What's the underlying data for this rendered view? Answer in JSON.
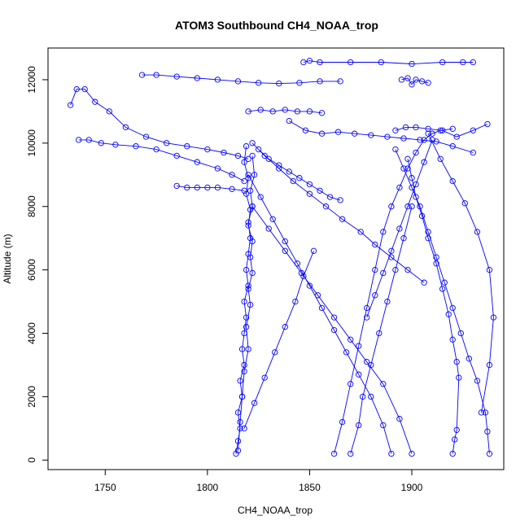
{
  "chart_data": {
    "type": "line",
    "title": "ATOM3 Southbound CH4_NOAA_trop",
    "xlabel": "CH4_NOAA_trop",
    "ylabel": "Altitude (m)",
    "xlim": [
      1722,
      1945
    ],
    "ylim": [
      -300,
      13000
    ],
    "x_ticks": [
      1750,
      1800,
      1850,
      1900
    ],
    "y_ticks": [
      0,
      2000,
      4000,
      6000,
      8000,
      10000,
      12000
    ],
    "x_tick_labels": [
      "1750",
      "1800",
      "1850",
      "1900"
    ],
    "y_tick_labels": [
      "0",
      "2000",
      "4000",
      "6000",
      "8000",
      "10000",
      "12000"
    ],
    "series_color": "#0000ff",
    "marker": "open-circle",
    "grid": false,
    "series": [
      {
        "x": [
          1814,
          1815,
          1816,
          1815,
          1817,
          1816,
          1818,
          1817,
          1818,
          1819,
          1818,
          1820,
          1819,
          1820,
          1821,
          1820,
          1822,
          1821,
          1823,
          1822
        ],
        "y": [
          200,
          600,
          1000,
          1500,
          2000,
          2500,
          3000,
          3500,
          4000,
          4500,
          5000,
          5500,
          6000,
          6500,
          7000,
          7500,
          8000,
          8500,
          9000,
          9600
        ]
      },
      {
        "x": [
          1819,
          1818,
          1820,
          1819,
          1821,
          1820,
          1822,
          1821,
          1822,
          1820,
          1821,
          1819,
          1820,
          1818,
          1817,
          1816,
          1815
        ],
        "y": [
          9900,
          9400,
          8900,
          8400,
          7900,
          7400,
          6900,
          6400,
          5900,
          5400,
          4900,
          4200,
          3500,
          2800,
          2000,
          1200,
          300
        ]
      },
      {
        "x": [
          1733,
          1736,
          1740,
          1745,
          1752,
          1760,
          1770,
          1780,
          1790,
          1800,
          1808,
          1815,
          1820
        ],
        "y": [
          11200,
          11700,
          11700,
          11300,
          11000,
          10500,
          10200,
          10000,
          9900,
          9800,
          9700,
          9600,
          9500
        ]
      },
      {
        "x": [
          1737,
          1742,
          1748,
          1755,
          1765,
          1775,
          1785,
          1795,
          1805,
          1812,
          1818
        ],
        "y": [
          10100,
          10100,
          10000,
          9950,
          9900,
          9800,
          9600,
          9400,
          9200,
          9000,
          8800
        ]
      },
      {
        "x": [
          1768,
          1775,
          1785,
          1795,
          1805,
          1815,
          1825,
          1835,
          1845,
          1855,
          1865
        ],
        "y": [
          12150,
          12150,
          12100,
          12050,
          12000,
          11950,
          11900,
          11880,
          11900,
          11950,
          11950
        ]
      },
      {
        "x": [
          1785,
          1790,
          1795,
          1800,
          1805,
          1812,
          1818
        ],
        "y": [
          8650,
          8600,
          8600,
          8600,
          8600,
          8550,
          8500
        ]
      },
      {
        "x": [
          1847,
          1850,
          1855,
          1870,
          1885,
          1900,
          1915,
          1925,
          1930
        ],
        "y": [
          12550,
          12600,
          12550,
          12550,
          12550,
          12500,
          12550,
          12550,
          12550
        ]
      },
      {
        "x": [
          1822,
          1828,
          1835,
          1842,
          1850,
          1858,
          1866,
          1875,
          1882,
          1890,
          1898,
          1906
        ],
        "y": [
          10000,
          9600,
          9200,
          8800,
          8400,
          8000,
          7600,
          7200,
          6800,
          6400,
          6000,
          5600
        ]
      },
      {
        "x": [
          1820,
          1826,
          1832,
          1838,
          1844,
          1850,
          1856,
          1862,
          1868,
          1874,
          1880,
          1886,
          1890
        ],
        "y": [
          9000,
          8300,
          7600,
          6900,
          6200,
          5500,
          4800,
          4100,
          3400,
          2700,
          2000,
          1100,
          200
        ]
      },
      {
        "x": [
          1822,
          1830,
          1838,
          1846,
          1854,
          1862,
          1870,
          1878,
          1886,
          1894,
          1900
        ],
        "y": [
          8000,
          7300,
          6600,
          5900,
          5200,
          4500,
          3800,
          3100,
          2400,
          1300,
          200
        ]
      },
      {
        "x": [
          1862,
          1866,
          1870,
          1874,
          1878,
          1882,
          1886,
          1890,
          1894,
          1898,
          1902,
          1906,
          1910,
          1914,
          1920
        ],
        "y": [
          200,
          1200,
          2400,
          3600,
          4800,
          6000,
          7200,
          8000,
          8600,
          9200,
          9700,
          10100,
          10300,
          10400,
          10450
        ]
      },
      {
        "x": [
          1870,
          1874,
          1876,
          1880,
          1884,
          1888,
          1892,
          1896,
          1900
        ],
        "y": [
          200,
          1100,
          2000,
          3000,
          4000,
          5000,
          6000,
          7000,
          8000
        ]
      },
      {
        "x": [
          1920,
          1921,
          1922,
          1923,
          1922,
          1920,
          1918,
          1915,
          1912,
          1908,
          1905,
          1902,
          1900,
          1898
        ],
        "y": [
          200,
          650,
          950,
          2600,
          3100,
          3800,
          4600,
          5400,
          6200,
          7000,
          7700,
          8300,
          8900,
          9500
        ]
      },
      {
        "x": [
          1938,
          1937,
          1936,
          1932,
          1928,
          1924,
          1920,
          1916,
          1912,
          1908,
          1904,
          1900,
          1896,
          1892
        ],
        "y": [
          200,
          900,
          1500,
          2500,
          3200,
          4000,
          4800,
          5600,
          6400,
          7200,
          8000,
          8600,
          9200,
          9800
        ]
      },
      {
        "x": [
          1892,
          1897,
          1902,
          1908,
          1915,
          1922,
          1930,
          1937
        ],
        "y": [
          10400,
          10500,
          10500,
          10450,
          10400,
          10200,
          10400,
          10600
        ]
      },
      {
        "x": [
          1840,
          1848,
          1856,
          1864,
          1872,
          1880,
          1888,
          1896,
          1904,
          1912,
          1920,
          1930
        ],
        "y": [
          10700,
          10400,
          10300,
          10350,
          10300,
          10250,
          10200,
          10150,
          10100,
          10050,
          9900,
          9700
        ]
      },
      {
        "x": [
          1820,
          1826,
          1832,
          1838,
          1844,
          1850,
          1856
        ],
        "y": [
          11000,
          11050,
          11000,
          11050,
          11000,
          11000,
          10950
        ]
      },
      {
        "x": [
          1895,
          1898,
          1900,
          1902,
          1905,
          1908
        ],
        "y": [
          12000,
          12050,
          11850,
          12000,
          11950,
          11900
        ]
      },
      {
        "x": [
          1825,
          1830,
          1835,
          1840,
          1845,
          1850,
          1855,
          1860,
          1865
        ],
        "y": [
          9800,
          9500,
          9300,
          9100,
          8900,
          8700,
          8500,
          8300,
          8200
        ]
      },
      {
        "x": [
          1818,
          1823,
          1828,
          1833,
          1838,
          1843,
          1847,
          1852
        ],
        "y": [
          1000,
          1800,
          2600,
          3400,
          4200,
          5000,
          5800,
          6600
        ]
      },
      {
        "x": [
          1908,
          1914,
          1920,
          1926,
          1932,
          1938,
          1940,
          1938,
          1934
        ],
        "y": [
          10300,
          9500,
          8800,
          8100,
          7200,
          6000,
          4500,
          3000,
          1500
        ]
      },
      {
        "x": [
          1878,
          1882,
          1886,
          1890,
          1894,
          1898,
          1902,
          1906,
          1910
        ],
        "y": [
          4500,
          5200,
          5900,
          6600,
          7300,
          8000,
          8700,
          9400,
          10100
        ]
      }
    ]
  }
}
